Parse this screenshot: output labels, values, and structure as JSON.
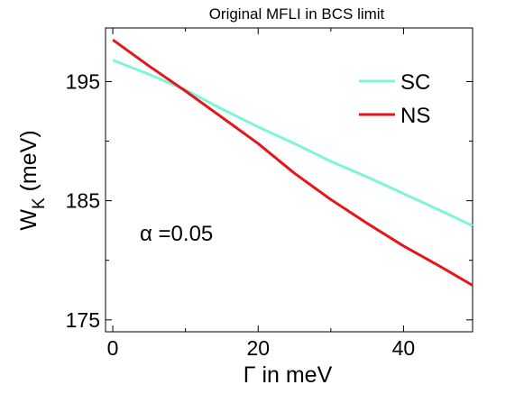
{
  "chart_data": {
    "type": "line",
    "title": "Original MFLI in BCS limit",
    "xlabel": "Γ in meV",
    "ylabel": "W",
    "ylabel_sub": "K",
    "ylabel_suffix": " (meV)",
    "xlim": [
      -1,
      49.5
    ],
    "ylim": [
      174,
      199.5
    ],
    "xticks": [
      0,
      20,
      40
    ],
    "yticks": [
      175,
      185,
      195
    ],
    "grid": false,
    "legend_position": "top-right",
    "annotation": "α =0.05",
    "series": [
      {
        "name": "SC",
        "color": "#7ff5d8",
        "x": [
          0,
          5,
          10,
          15,
          20,
          25,
          30,
          35,
          40,
          45,
          49.5
        ],
        "y": [
          196.8,
          195.6,
          194.3,
          192.7,
          191.2,
          189.8,
          188.3,
          187.0,
          185.6,
          184.2,
          182.9
        ]
      },
      {
        "name": "NS",
        "color": "#e8141c",
        "x": [
          0,
          5,
          10,
          15,
          20,
          25,
          30,
          35,
          40,
          45,
          49.5
        ],
        "y": [
          198.5,
          196.3,
          194.2,
          192.0,
          189.8,
          187.3,
          185.1,
          183.1,
          181.2,
          179.5,
          177.9
        ]
      }
    ]
  }
}
